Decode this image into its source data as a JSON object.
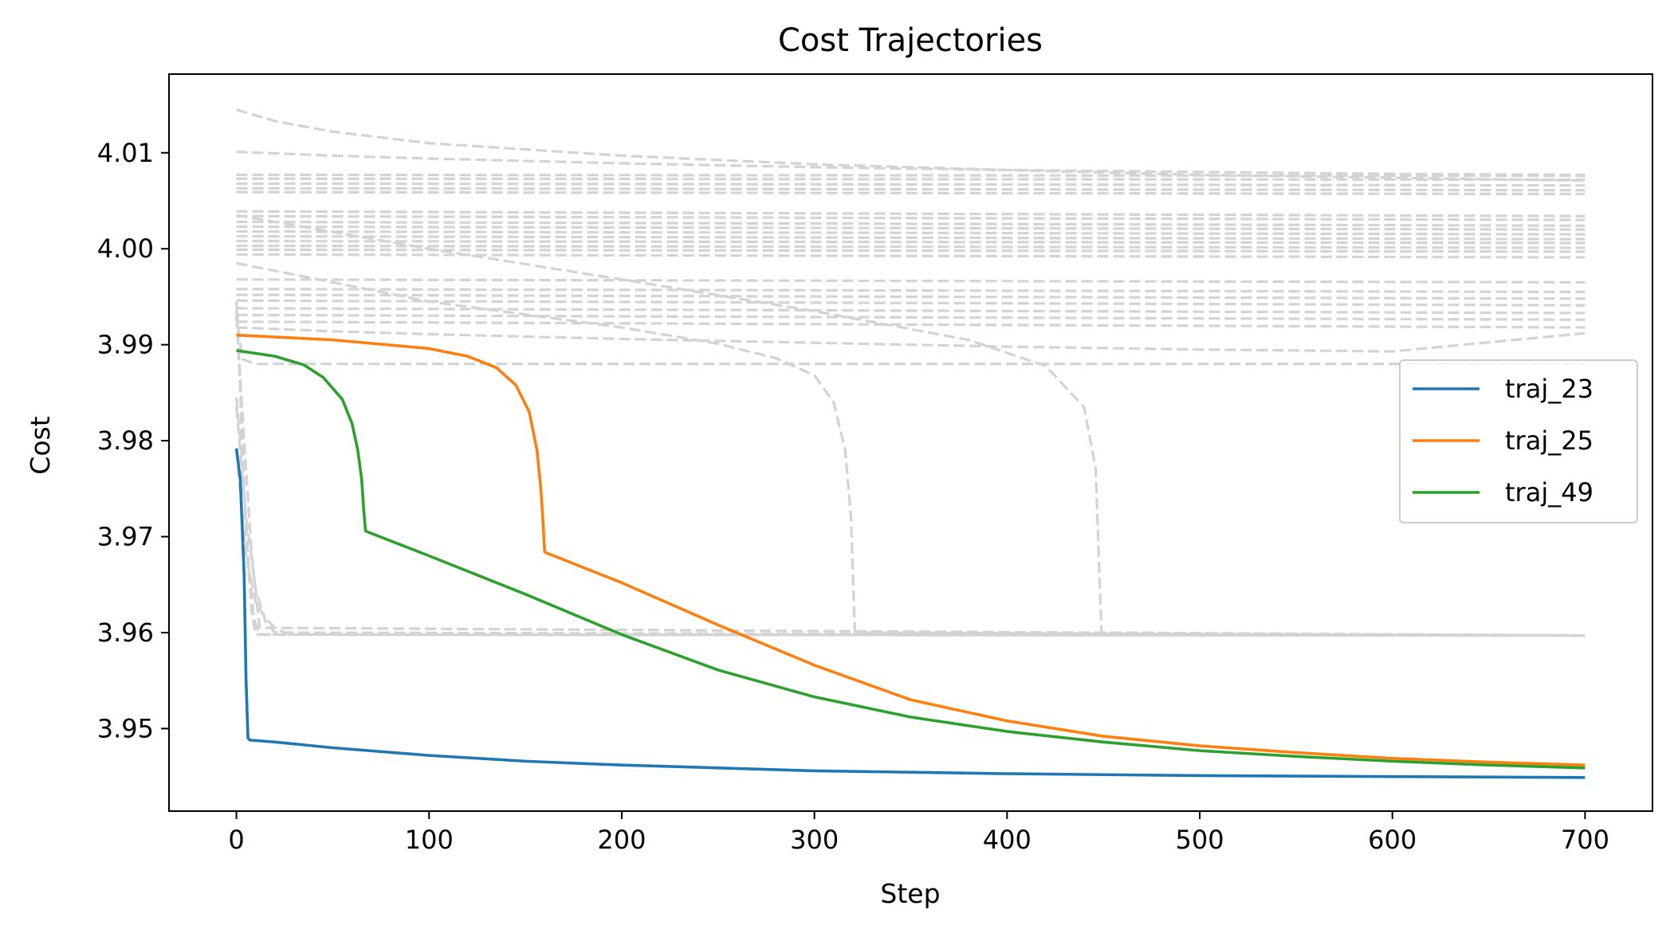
{
  "chart_data": {
    "type": "line",
    "title": "Cost Trajectories",
    "xlabel": "Step",
    "ylabel": "Cost",
    "xlim": [
      -35,
      735
    ],
    "ylim": [
      3.9414,
      4.0182
    ],
    "x_ticks": [
      0,
      100,
      200,
      300,
      400,
      500,
      600,
      700
    ],
    "x_tick_labels": [
      "0",
      "100",
      "200",
      "300",
      "400",
      "500",
      "600",
      "700"
    ],
    "y_ticks": [
      3.95,
      3.96,
      3.97,
      3.98,
      3.99,
      4.0,
      4.01
    ],
    "y_tick_labels": [
      "3.95",
      "3.96",
      "3.97",
      "3.98",
      "3.99",
      "4.00",
      "4.01"
    ],
    "grid": false,
    "legend_position": "center-right",
    "background_series_color": "#d3d3d3",
    "background_series_style": "dashed",
    "background_series": [
      {
        "x": [
          0,
          20,
          50,
          100,
          200,
          300,
          400,
          500,
          600,
          700
        ],
        "y": [
          4.0145,
          4.0133,
          4.0122,
          4.011,
          4.0097,
          4.0088,
          4.0082,
          4.0077,
          4.0074,
          4.0071
        ]
      },
      {
        "x": [
          0,
          50,
          100,
          200,
          300,
          400,
          500,
          600,
          700
        ],
        "y": [
          4.0101,
          4.0097,
          4.0094,
          4.0089,
          4.0085,
          4.0082,
          4.008,
          4.0078,
          4.0077
        ]
      },
      {
        "x": [
          0,
          700
        ],
        "y": [
          4.0077,
          4.0076
        ]
      },
      {
        "x": [
          0,
          700
        ],
        "y": [
          4.0073,
          4.0072
        ]
      },
      {
        "x": [
          0,
          700
        ],
        "y": [
          4.0068,
          4.0066
        ]
      },
      {
        "x": [
          0,
          700
        ],
        "y": [
          4.0063,
          4.0061
        ]
      },
      {
        "x": [
          0,
          700
        ],
        "y": [
          4.0059,
          4.0057
        ]
      },
      {
        "x": [
          0,
          700
        ],
        "y": [
          4.0039,
          4.0034
        ]
      },
      {
        "x": [
          0,
          700
        ],
        "y": [
          4.0034,
          4.003
        ]
      },
      {
        "x": [
          0,
          700
        ],
        "y": [
          4.0028,
          4.0024
        ]
      },
      {
        "x": [
          0,
          700
        ],
        "y": [
          4.0023,
          4.002
        ]
      },
      {
        "x": [
          0,
          700
        ],
        "y": [
          4.0018,
          4.0015
        ]
      },
      {
        "x": [
          0,
          700
        ],
        "y": [
          4.0013,
          4.001
        ]
      },
      {
        "x": [
          0,
          700
        ],
        "y": [
          4.0008,
          4.0006
        ]
      },
      {
        "x": [
          0,
          700
        ],
        "y": [
          4.0003,
          4.0001
        ]
      },
      {
        "x": [
          0,
          700
        ],
        "y": [
          3.9999,
          3.9997
        ]
      },
      {
        "x": [
          0,
          700
        ],
        "y": [
          3.9994,
          3.9991
        ]
      },
      {
        "x": [
          0,
          700
        ],
        "y": [
          3.9968,
          3.9965
        ]
      },
      {
        "x": [
          0,
          700
        ],
        "y": [
          3.9958,
          3.9955
        ]
      },
      {
        "x": [
          0,
          700
        ],
        "y": [
          3.9952,
          3.9948
        ]
      },
      {
        "x": [
          0,
          700
        ],
        "y": [
          3.9946,
          3.9941
        ]
      },
      {
        "x": [
          0,
          700
        ],
        "y": [
          3.9938,
          3.9933
        ]
      },
      {
        "x": [
          0,
          700
        ],
        "y": [
          3.9931,
          3.9926
        ]
      },
      {
        "x": [
          0,
          700
        ],
        "y": [
          3.9924,
          3.9918
        ]
      },
      {
        "x": [
          0,
          50,
          100,
          200,
          300,
          400,
          500,
          600,
          700
        ],
        "y": [
          3.9918,
          3.9914,
          3.9911,
          3.9906,
          3.9902,
          3.9898,
          3.9895,
          3.9893,
          3.9912
        ]
      },
      {
        "x": [
          0,
          3,
          10,
          700
        ],
        "y": [
          3.9935,
          3.9885,
          3.988,
          3.988
        ]
      },
      {
        "x": [
          0,
          100,
          200,
          250,
          280,
          300,
          310,
          316,
          319,
          321,
          700
        ],
        "y": [
          3.9985,
          3.9945,
          3.9918,
          3.9901,
          3.9886,
          3.9868,
          3.984,
          3.979,
          3.972,
          3.96,
          3.9597
        ]
      },
      {
        "x": [
          0,
          100,
          200,
          300,
          380,
          420,
          440,
          446,
          449,
          700
        ],
        "y": [
          4.0035,
          4.0,
          3.9968,
          3.9935,
          3.9905,
          3.9878,
          3.9835,
          3.977,
          3.96,
          3.9597
        ]
      },
      {
        "x": [
          0,
          2,
          5,
          8,
          10,
          700
        ],
        "y": [
          3.9945,
          3.985,
          3.97,
          3.962,
          3.9598,
          3.9597
        ]
      },
      {
        "x": [
          0,
          3,
          6,
          9,
          12,
          700
        ],
        "y": [
          3.9845,
          3.978,
          3.968,
          3.9615,
          3.9598,
          3.9597
        ]
      },
      {
        "x": [
          0,
          5,
          10,
          15,
          20,
          700
        ],
        "y": [
          3.9835,
          3.972,
          3.9645,
          3.9612,
          3.96,
          3.9597
        ]
      },
      {
        "x": [
          0,
          5,
          10,
          15,
          20,
          25,
          30,
          700
        ],
        "y": [
          3.979,
          3.968,
          3.9632,
          3.9615,
          3.9605,
          3.96,
          3.9598,
          3.9597
        ]
      },
      {
        "x": [
          0,
          4,
          8,
          12,
          700
        ],
        "y": [
          3.993,
          3.98,
          3.968,
          3.9605,
          3.9597
        ]
      }
    ],
    "series": [
      {
        "name": "traj_23",
        "color": "#1f77b4",
        "x": [
          0,
          2,
          4,
          5,
          6,
          7,
          20,
          50,
          100,
          150,
          200,
          250,
          300,
          400,
          500,
          600,
          700
        ],
        "y": [
          3.9792,
          3.976,
          3.966,
          3.955,
          3.949,
          3.9488,
          3.9486,
          3.948,
          3.9472,
          3.9466,
          3.9462,
          3.9459,
          3.9456,
          3.9453,
          3.9451,
          3.945,
          3.9449
        ]
      },
      {
        "name": "traj_25",
        "color": "#ff7f0e",
        "x": [
          0,
          50,
          100,
          120,
          135,
          145,
          152,
          156,
          158,
          159,
          160,
          161,
          200,
          250,
          300,
          350,
          400,
          450,
          500,
          550,
          600,
          650,
          700
        ],
        "y": [
          3.991,
          3.9905,
          3.9896,
          3.9888,
          3.9876,
          3.9858,
          3.983,
          3.979,
          3.975,
          3.972,
          3.9684,
          3.9683,
          3.9652,
          3.9608,
          3.9566,
          3.953,
          3.9508,
          3.9492,
          3.9482,
          3.9475,
          3.9469,
          3.9465,
          3.9462
        ]
      },
      {
        "name": "traj_49",
        "color": "#2ca02c",
        "x": [
          0,
          20,
          35,
          45,
          55,
          60,
          63,
          65,
          66,
          67,
          68,
          100,
          150,
          200,
          250,
          300,
          350,
          400,
          450,
          500,
          550,
          600,
          650,
          700
        ],
        "y": [
          3.9894,
          3.9888,
          3.9879,
          3.9866,
          3.9843,
          3.9818,
          3.979,
          3.976,
          3.973,
          3.9706,
          3.9705,
          3.968,
          3.964,
          3.9598,
          3.9561,
          3.9533,
          3.9512,
          3.9497,
          3.9486,
          3.9477,
          3.9471,
          3.9466,
          3.9462,
          3.9459
        ]
      }
    ]
  }
}
